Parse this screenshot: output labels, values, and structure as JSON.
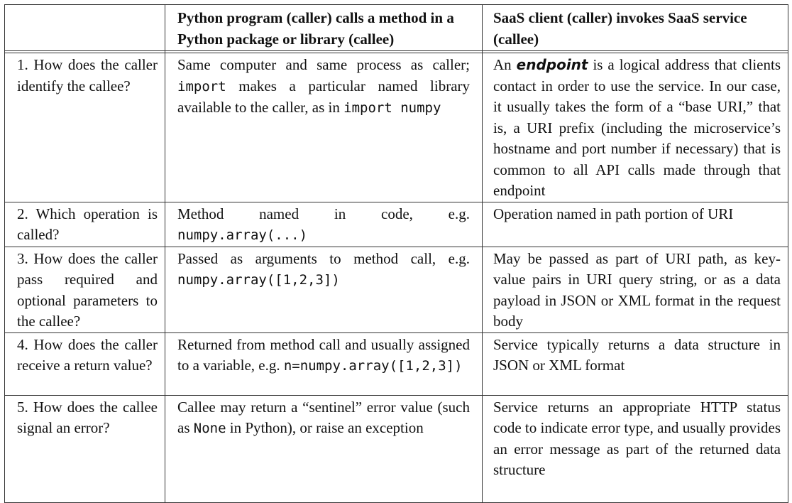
{
  "headers": {
    "col1": "",
    "col2": "Python program (caller) calls a method in a Python package or library (callee)",
    "col3": "SaaS client (caller) invokes SaaS service (callee)"
  },
  "rows": [
    {
      "question": "1. How does the caller identify the callee?",
      "python_pre": "Same computer and same process as caller;",
      "python_code1": "import",
      "python_mid": "makes a particular named library available to the caller, as in",
      "python_code2": "import numpy",
      "saas_pre": "An",
      "saas_em": "endpoint",
      "saas_post": "is a logical address that clients contact in order to use the service. In our case, it usually takes the form of a “base URI,” that is, a URI prefix (including the microservice’s hostname and port number if necessary) that is common to all API calls made through that endpoint"
    },
    {
      "question": "2. Which operation is called?",
      "python_pre": "Method named in code, e.g.",
      "python_code": "numpy.array(...)",
      "saas": "Operation named in path portion of URI"
    },
    {
      "question": "3. How does the caller pass required and optional parameters to the callee?",
      "python_pre": "Passed as arguments to method call, e.g.",
      "python_code": "numpy.array([1,2,3])",
      "saas": "May be passed as part of URI path, as key-value pairs in URI query string, or as a data payload in JSON or XML format in the request body"
    },
    {
      "question": "4. How does the caller receive a return value?",
      "python_pre": "Returned from method call and usually assigned to a variable, e.g.",
      "python_code": "n=numpy.array([1,2,3])",
      "saas": "Service typically returns a data structure in JSON or XML format"
    },
    {
      "question": "5. How does the callee signal an error?",
      "python_pre": "Callee may return a “sentinel” error value (such as",
      "python_code": "None",
      "python_post": "in Python), or raise an exception",
      "saas": "Service returns an appropriate HTTP status code to indicate error type, and usually provides an error message as part of the returned data structure"
    }
  ]
}
